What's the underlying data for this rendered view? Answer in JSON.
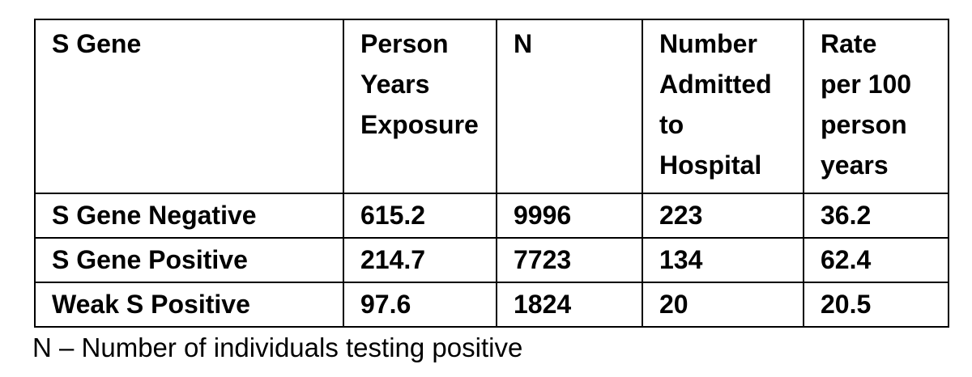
{
  "table": {
    "headers": [
      "S Gene",
      "Person\nYears\nExposure",
      "N",
      "Number\nAdmitted\nto\nHospital",
      "Rate\nper 100\nperson\nyears"
    ],
    "rows": [
      [
        "S Gene Negative",
        "615.2",
        "9996",
        "223",
        "36.2"
      ],
      [
        "S Gene Positive",
        "214.7",
        "7723",
        "134",
        "62.4"
      ],
      [
        "Weak S Positive",
        "97.6",
        "1824",
        "20",
        "20.5"
      ]
    ]
  },
  "footnote": "N – Number of individuals testing positive"
}
